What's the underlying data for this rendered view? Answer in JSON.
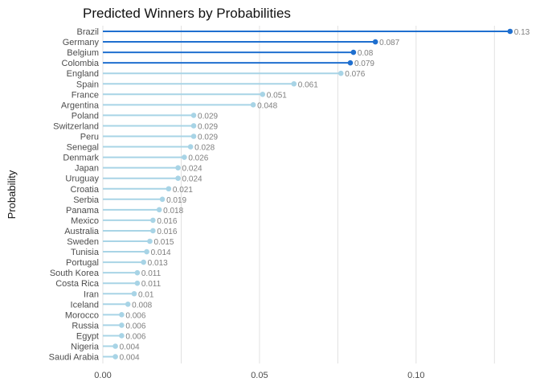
{
  "chart_data": {
    "type": "lollipop",
    "title": "Predicted Winners by Probabilities",
    "ylabel": "Probability",
    "xlabel": "",
    "xlim": [
      0,
      0.1375
    ],
    "xticks": [
      0.0,
      0.05,
      0.1
    ],
    "xtick_labels": [
      "0.00",
      "0.05",
      "0.10"
    ],
    "grid": "vertical",
    "highlight_color": "#1f6fcf",
    "base_color": "#a8d4e6",
    "categories": [
      "Brazil",
      "Germany",
      "Belgium",
      "Colombia",
      "England",
      "Spain",
      "France",
      "Argentina",
      "Poland",
      "Switzerland",
      "Peru",
      "Senegal",
      "Denmark",
      "Japan",
      "Uruguay",
      "Croatia",
      "Serbia",
      "Panama",
      "Mexico",
      "Australia",
      "Sweden",
      "Tunisia",
      "Portugal",
      "South Korea",
      "Costa Rica",
      "Iran",
      "Iceland",
      "Morocco",
      "Russia",
      "Egypt",
      "Nigeria",
      "Saudi Arabia"
    ],
    "values": [
      0.13,
      0.087,
      0.08,
      0.079,
      0.076,
      0.061,
      0.051,
      0.048,
      0.029,
      0.029,
      0.029,
      0.028,
      0.026,
      0.024,
      0.024,
      0.021,
      0.019,
      0.018,
      0.016,
      0.016,
      0.015,
      0.014,
      0.013,
      0.011,
      0.011,
      0.01,
      0.008,
      0.006,
      0.006,
      0.006,
      0.004,
      0.004
    ],
    "value_labels": [
      "0.13",
      "0.087",
      "0.08",
      "0.079",
      "0.076",
      "0.061",
      "0.051",
      "0.048",
      "0.029",
      "0.029",
      "0.029",
      "0.028",
      "0.026",
      "0.024",
      "0.024",
      "0.021",
      "0.019",
      "0.018",
      "0.016",
      "0.016",
      "0.015",
      "0.014",
      "0.013",
      "0.011",
      "0.011",
      "0.01",
      "0.008",
      "0.006",
      "0.006",
      "0.006",
      "0.004",
      "0.004"
    ],
    "highlighted": [
      "Brazil",
      "Germany",
      "Belgium",
      "Colombia"
    ]
  }
}
